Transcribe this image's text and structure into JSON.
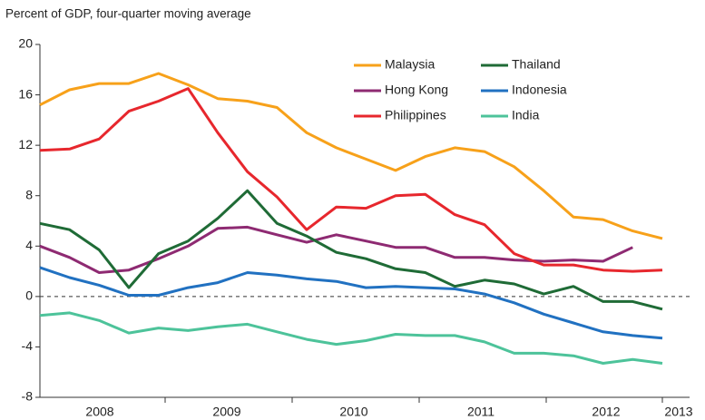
{
  "chart_data": {
    "type": "line",
    "title": "Percent of GDP, four-quarter moving average",
    "year_labels": [
      "2008",
      "2009",
      "2010",
      "2011",
      "2012",
      "2013"
    ],
    "ylim": [
      -8,
      20
    ],
    "yticks": [
      -8,
      -4,
      0,
      4,
      8,
      12,
      16,
      20
    ],
    "zero_line": "dashed",
    "series": [
      {
        "name": "Malaysia",
        "color": "#f7a11a",
        "values": [
          15.2,
          16.4,
          16.9,
          16.9,
          17.7,
          16.8,
          15.7,
          15.5,
          15.0,
          13.0,
          11.8,
          10.9,
          10.0,
          11.1,
          11.8,
          11.5,
          10.3,
          8.4,
          6.3,
          6.1,
          5.2,
          4.6
        ]
      },
      {
        "name": "Hong Kong",
        "color": "#8e2a72",
        "values": [
          4.0,
          3.1,
          1.9,
          2.1,
          3.0,
          4.0,
          5.4,
          5.5,
          4.9,
          4.3,
          4.9,
          4.4,
          3.9,
          3.9,
          3.1,
          3.1,
          2.9,
          2.8,
          2.9,
          2.8,
          3.9,
          null
        ]
      },
      {
        "name": "Philippines",
        "color": "#e7272d",
        "values": [
          11.6,
          11.7,
          12.5,
          14.7,
          15.5,
          16.5,
          13.0,
          9.9,
          7.9,
          5.3,
          7.1,
          7.0,
          8.0,
          8.1,
          6.5,
          5.7,
          3.4,
          2.5,
          2.5,
          2.1,
          2.0,
          2.1
        ]
      },
      {
        "name": "Thailand",
        "color": "#1f6b36",
        "values": [
          5.8,
          5.3,
          3.7,
          0.7,
          3.4,
          4.4,
          6.2,
          8.4,
          5.8,
          4.8,
          3.5,
          3.0,
          2.2,
          1.9,
          0.8,
          1.3,
          1.0,
          0.2,
          0.8,
          -0.4,
          -0.4,
          -1.0
        ]
      },
      {
        "name": "Indonesia",
        "color": "#2171c1",
        "values": [
          2.3,
          1.5,
          0.9,
          0.1,
          0.1,
          0.7,
          1.1,
          1.9,
          1.7,
          1.4,
          1.2,
          0.7,
          0.8,
          0.7,
          0.6,
          0.2,
          -0.5,
          -1.4,
          -2.1,
          -2.8,
          -3.1,
          -3.3
        ]
      },
      {
        "name": "India",
        "color": "#4dc39a",
        "values": [
          -1.5,
          -1.3,
          -1.9,
          -2.9,
          -2.5,
          -2.7,
          -2.4,
          -2.2,
          -2.8,
          -3.4,
          -3.8,
          -3.5,
          -3.0,
          -3.1,
          -3.1,
          -3.6,
          -4.5,
          -4.5,
          -4.7,
          -5.3,
          -5.0,
          -5.3
        ]
      }
    ]
  }
}
